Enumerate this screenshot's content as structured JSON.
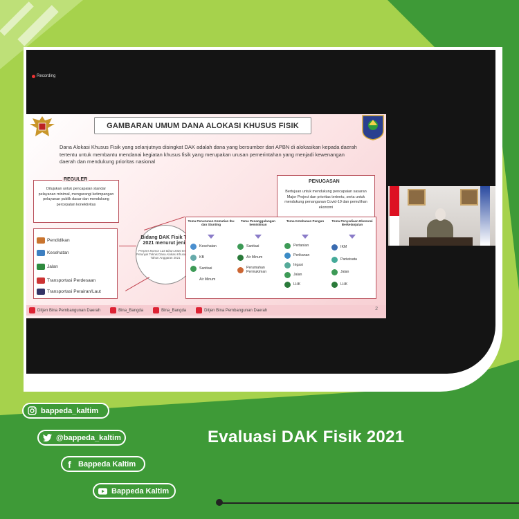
{
  "meeting": {
    "recording_label": "Recording"
  },
  "slide": {
    "title": "GAMBARAN UMUM DANA ALOKASI KHUSUS FISIK",
    "intro": "Dana Alokasi Khusus Fisik yang selanjutnya disingkat DAK adalah dana yang bersumber dari APBN di alokasikan kepada daerah tertentu untuk membantu mendanai kegiatan khusus fisik yang merupakan urusan pemerintahan yang menjadi kewenangan daerah dan mendukung prioritas nasional",
    "reguler": {
      "title": "REGULER",
      "text": "Ditujukan untuk pencapaian standar pelayanan minimal, mengurangi ketimpangan pelayanan publik dasar dan mendukung percepatan konektivitas"
    },
    "penugasan": {
      "title": "PENUGASAN",
      "text": "Bertujuan untuk mendukung pencapaian sasaran Major Project dan prioritas tertentu, serta untuk mendukung penanganan Covid-19 dan pemulihan ekonomi"
    },
    "reguler_items": [
      "Pendidikan",
      "Kesehatan",
      "Jalan",
      "Transportasi Perdesaan",
      "Transportasi Perairan/Laut"
    ],
    "bidang": {
      "title": "Bidang DAK Fisik TA 2021 menurut jenis",
      "note": "Perpres Nomor 123 tahun 2020 tentang Petunjuk Teknis Dana Alokasi Khusus Fisik Tahun Anggaran 2021"
    },
    "tema": [
      {
        "head": "Tema Penurunan Kematian Ibu dan Stunting",
        "items": [
          "Kesehatan",
          "KB",
          "Sanitasi",
          "Air Minum"
        ]
      },
      {
        "head": "Tema Penanggulangan kemiskinan",
        "items": [
          "Sanitasi",
          "Air Minum",
          "Perumahan Permukiman"
        ]
      },
      {
        "head": "Tema Ketahanan Pangan",
        "items": [
          "Pertanian",
          "Perikanan",
          "Irigasi",
          "Jalan",
          "LHK"
        ]
      },
      {
        "head": "Tema Penyediaan Ekonomi Berkelanjutan",
        "items": [
          "IKM",
          "Pariwisata",
          "Jalan",
          "LHK"
        ]
      }
    ],
    "footer": [
      "Ditjen Bina Pembangunan Daerah",
      "Bina_Bangda",
      "Bina_Bangda",
      "Ditjen Bina Pembangunan Daerah"
    ],
    "page_number": "2"
  },
  "socials": {
    "instagram": "bappeda_kaltim",
    "twitter": "@bappeda_kaltim",
    "facebook": "Bappeda Kaltim",
    "youtube": "Bappeda Kaltim"
  },
  "headline": "Evaluasi DAK Fisik 2021",
  "colors": {
    "brand_green": "#3e9a37",
    "lime": "#a6d24c",
    "slide_accent": "#b9505b"
  }
}
